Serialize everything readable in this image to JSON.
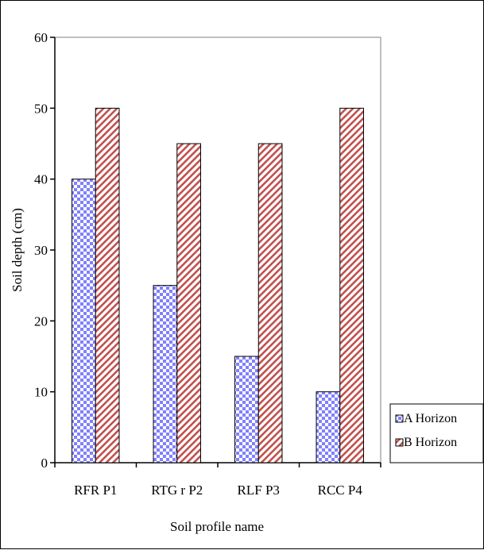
{
  "chart_data": {
    "type": "bar",
    "categories": [
      "RFR P1",
      "RTG r P2",
      "RLF P3",
      "RCC P4"
    ],
    "series": [
      {
        "name": "A Horizon",
        "values": [
          40,
          25,
          15,
          10
        ],
        "color": "#8080ff",
        "pattern": "checker"
      },
      {
        "name": "B Horizon",
        "values": [
          50,
          45,
          45,
          50
        ],
        "color": "#c0504d",
        "pattern": "diagonal-hatch"
      }
    ],
    "xlabel": "Soil profile name",
    "ylabel": "Soil depth (cm)",
    "ylim": [
      0,
      60
    ],
    "yticks": [
      0,
      10,
      20,
      30,
      40,
      50,
      60
    ],
    "grid": false,
    "legend_position": "bottom-right"
  }
}
